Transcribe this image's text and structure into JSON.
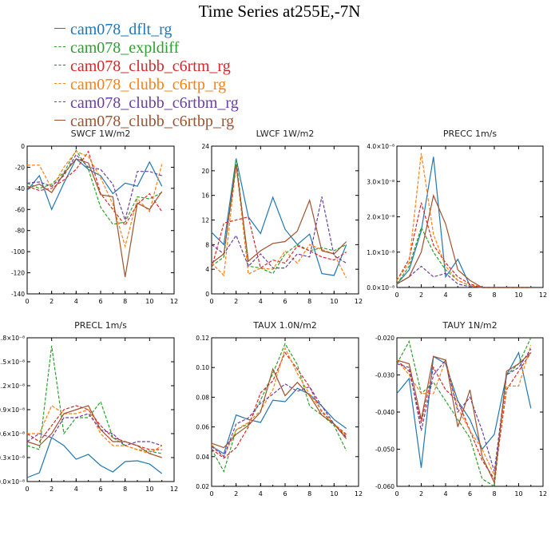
{
  "title": "Time Series at255E,-7N",
  "colors": {
    "cam078_dflt_rg": "#1f77b4",
    "cam078_expldiff": "#2ca02c",
    "cam078_clubb_c6rtm_rg": "#d62728",
    "cam078_clubb_c6rtp_rg": "#ff7f0e",
    "cam078_clubb_c6rtbm_rg": "#6b3fa0",
    "cam078_clubb_c6rtbp_rg": "#a0522d"
  },
  "legend": [
    {
      "name": "cam078_dflt_rg",
      "style": "solid"
    },
    {
      "name": "cam078_expldiff",
      "style": "dashed"
    },
    {
      "name": "cam078_clubb_c6rtm_rg",
      "style": "dashed"
    },
    {
      "name": "cam078_clubb_c6rtp_rg",
      "style": "dashed"
    },
    {
      "name": "cam078_clubb_c6rtbm_rg",
      "style": "dashed"
    },
    {
      "name": "cam078_clubb_c6rtbp_rg",
      "style": "solid"
    }
  ],
  "chart_data": [
    {
      "type": "line",
      "id": "swcf",
      "title": "SWCF   1W/m2",
      "x": [
        0,
        1,
        2,
        3,
        4,
        5,
        6,
        7,
        8,
        9,
        10,
        11
      ],
      "xlim": [
        0,
        12
      ],
      "xticks": [
        0,
        2,
        4,
        6,
        8,
        10,
        12
      ],
      "ylim": [
        -140,
        0
      ],
      "yticks": [
        -140,
        -120,
        -100,
        -80,
        -60,
        -40,
        -20,
        0
      ],
      "ytick_labels": [
        "-140",
        "-120",
        "-100",
        "-80",
        "-60",
        "-40",
        "-20",
        "0"
      ],
      "series": [
        {
          "name": "cam078_dflt_rg",
          "values": [
            -42,
            -28,
            -60,
            -35,
            -12,
            -22,
            -28,
            -45,
            -35,
            -38,
            -15,
            -38
          ]
        },
        {
          "name": "cam078_expldiff",
          "values": [
            -35,
            -40,
            -36,
            -25,
            -4,
            -22,
            -58,
            -74,
            -72,
            -48,
            -50,
            -44
          ]
        },
        {
          "name": "cam078_clubb_c6rtm_rg",
          "values": [
            -38,
            -42,
            -40,
            -32,
            -22,
            -5,
            -45,
            -60,
            -75,
            -55,
            -45,
            -62
          ]
        },
        {
          "name": "cam078_clubb_c6rtp_rg",
          "values": [
            -18,
            -18,
            -40,
            -20,
            -5,
            -10,
            -30,
            -55,
            -95,
            -50,
            -62,
            -17
          ]
        },
        {
          "name": "cam078_clubb_c6rtbm_rg",
          "values": [
            -35,
            -34,
            -38,
            -28,
            -8,
            -20,
            -22,
            -36,
            -70,
            -24,
            -24,
            -28
          ]
        },
        {
          "name": "cam078_clubb_c6rtbp_rg",
          "values": [
            -40,
            -36,
            -44,
            -26,
            -12,
            -16,
            -46,
            -48,
            -124,
            -54,
            -60,
            -43
          ]
        }
      ]
    },
    {
      "type": "line",
      "id": "lwcf",
      "title": "LWCF   1W/m2",
      "x": [
        0,
        1,
        2,
        3,
        4,
        5,
        6,
        7,
        8,
        9,
        10,
        11
      ],
      "xlim": [
        0,
        12
      ],
      "xticks": [
        0,
        2,
        4,
        6,
        8,
        10,
        12
      ],
      "ylim": [
        0,
        24
      ],
      "yticks": [
        0,
        4,
        8,
        12,
        16,
        20,
        24
      ],
      "ytick_labels": [
        "0",
        "4",
        "8",
        "12",
        "16",
        "20",
        "24"
      ],
      "series": [
        {
          "name": "cam078_dflt_rg",
          "values": [
            10,
            8,
            22,
            12.5,
            9.8,
            15.7,
            10.5,
            8,
            9.7,
            3.3,
            3.0,
            8
          ]
        },
        {
          "name": "cam078_expldiff",
          "values": [
            4.5,
            6.0,
            22,
            4.5,
            4.2,
            3.3,
            6.5,
            8,
            7,
            7.5,
            7,
            8
          ]
        },
        {
          "name": "cam078_clubb_c6rtm_rg",
          "values": [
            4.2,
            11.5,
            12,
            12.5,
            4.2,
            5.5,
            5,
            7.8,
            7,
            6,
            5.5,
            6.8
          ]
        },
        {
          "name": "cam078_clubb_c6rtp_rg",
          "values": [
            5,
            3,
            21,
            3.2,
            4.2,
            4,
            7,
            5,
            8,
            7.2,
            6.5,
            2.6
          ]
        },
        {
          "name": "cam078_clubb_c6rtbm_rg",
          "values": [
            8,
            6.5,
            9.5,
            4.5,
            6.5,
            4.2,
            4.2,
            6.5,
            6,
            15.8,
            6.2,
            5
          ]
        },
        {
          "name": "cam078_clubb_c6rtbp_rg",
          "values": [
            5,
            6.5,
            21,
            5.3,
            7,
            8.2,
            8.5,
            10.2,
            15.2,
            7,
            6.5,
            8.5
          ]
        }
      ]
    },
    {
      "type": "line",
      "id": "precc",
      "title": "PRECC   1m/s",
      "x": [
        0,
        1,
        2,
        3,
        4,
        5,
        6,
        7,
        8,
        9,
        10,
        11
      ],
      "xlim": [
        0,
        12
      ],
      "xticks": [
        0,
        2,
        4,
        6,
        8,
        10,
        12
      ],
      "ylim": [
        0,
        4e-08
      ],
      "yticks": [
        0,
        1e-08,
        2e-08,
        3e-08,
        4e-08
      ],
      "ytick_labels": [
        "0.0×10⁻⁸",
        "1.0×10⁻⁸",
        "2.0×10⁻⁸",
        "3.0×10⁻⁸",
        "4.0×10⁻⁸"
      ],
      "series": [
        {
          "name": "cam078_dflt_rg",
          "values": [
            1e-09,
            5e-09,
            1.6e-08,
            3.7e-08,
            3e-09,
            8e-09,
            5e-10,
            0,
            0,
            0,
            0,
            0
          ]
        },
        {
          "name": "cam078_expldiff",
          "values": [
            1e-09,
            6e-09,
            1.7e-08,
            1e-08,
            5e-09,
            2e-09,
            5e-10,
            0,
            0,
            0,
            0,
            0
          ]
        },
        {
          "name": "cam078_clubb_c6rtm_rg",
          "values": [
            2e-09,
            8e-09,
            2.4e-08,
            1.2e-08,
            7e-09,
            3e-09,
            1e-09,
            0,
            0,
            0,
            0,
            0
          ]
        },
        {
          "name": "cam078_clubb_c6rtp_rg",
          "values": [
            2e-09,
            7e-09,
            3.8e-08,
            1.5e-08,
            6e-09,
            2e-09,
            5e-10,
            0,
            0,
            0,
            0,
            0
          ]
        },
        {
          "name": "cam078_clubb_c6rtbm_rg",
          "values": [
            1e-09,
            3e-09,
            6e-09,
            3e-09,
            4e-09,
            1e-09,
            2e-10,
            0,
            0,
            0,
            0,
            0
          ]
        },
        {
          "name": "cam078_clubb_c6rtbp_rg",
          "values": [
            1e-09,
            3e-09,
            1e-08,
            2.6e-08,
            1.8e-08,
            5e-09,
            2e-09,
            0,
            0,
            0,
            0,
            0
          ]
        }
      ]
    },
    {
      "type": "line",
      "id": "precl",
      "title": "PRECL   1m/s",
      "x": [
        0,
        1,
        2,
        3,
        4,
        5,
        6,
        7,
        8,
        9,
        10,
        11
      ],
      "xlim": [
        0,
        12
      ],
      "xticks": [
        0,
        2,
        4,
        6,
        8,
        10,
        12
      ],
      "ylim": [
        0,
        1.8e-08
      ],
      "yticks": [
        0,
        3e-09,
        6e-09,
        9e-09,
        1.2e-08,
        1.5e-08,
        1.8e-08
      ],
      "ytick_labels": [
        "0.0×10⁻⁸",
        "0.3×10⁻⁸",
        "0.6×10⁻⁸",
        "0.9×10⁻⁸",
        "1.2×10⁻⁸",
        "1.5×10⁻⁸",
        "1.8×10⁻⁸"
      ],
      "series": [
        {
          "name": "cam078_dflt_rg",
          "values": [
            5e-10,
            1.1e-09,
            5.5e-09,
            4.5e-09,
            2.8e-09,
            3.4e-09,
            2e-09,
            1.2e-09,
            2.5e-09,
            2.6e-09,
            2.2e-09,
            1e-09
          ]
        },
        {
          "name": "cam078_expldiff",
          "values": [
            4.5e-09,
            4e-09,
            1.7e-08,
            6e-09,
            8e-09,
            8e-09,
            1e-08,
            5.5e-09,
            4.5e-09,
            4e-09,
            3.8e-09,
            3.5e-09
          ]
        },
        {
          "name": "cam078_clubb_c6rtm_rg",
          "values": [
            6e-09,
            5e-09,
            7e-09,
            9e-09,
            9.5e-09,
            9e-09,
            7e-09,
            5.5e-09,
            5e-09,
            4.5e-09,
            4e-09,
            4e-09
          ]
        },
        {
          "name": "cam078_clubb_c6rtp_rg",
          "values": [
            6e-09,
            6e-09,
            9.5e-09,
            8.5e-09,
            8.5e-09,
            9e-09,
            6e-09,
            4.5e-09,
            4.5e-09,
            4e-09,
            3.5e-09,
            4.5e-09
          ]
        },
        {
          "name": "cam078_clubb_c6rtbm_rg",
          "values": [
            5e-09,
            6e-09,
            5.5e-09,
            8e-09,
            8e-09,
            8.5e-09,
            6.5e-09,
            6e-09,
            4.5e-09,
            5e-09,
            5e-09,
            4.5e-09
          ]
        },
        {
          "name": "cam078_clubb_c6rtbp_rg",
          "values": [
            5e-09,
            4.5e-09,
            6e-09,
            8.5e-09,
            9e-09,
            9.5e-09,
            6.5e-09,
            5e-09,
            5e-09,
            4.5e-09,
            3.5e-09,
            3e-09
          ]
        }
      ]
    },
    {
      "type": "line",
      "id": "taux",
      "title": "TAUX   1.0N/m2",
      "x": [
        0,
        1,
        2,
        3,
        4,
        5,
        6,
        7,
        8,
        9,
        10,
        11
      ],
      "xlim": [
        0,
        12
      ],
      "xticks": [
        0,
        2,
        4,
        6,
        8,
        10,
        12
      ],
      "ylim": [
        0.02,
        0.12
      ],
      "yticks": [
        0.02,
        0.04,
        0.06,
        0.08,
        0.1,
        0.12
      ],
      "ytick_labels": [
        "0.02",
        "0.04",
        "0.06",
        "0.08",
        "0.10",
        "0.12"
      ],
      "series": [
        {
          "name": "cam078_dflt_rg",
          "values": [
            0.047,
            0.042,
            0.068,
            0.065,
            0.063,
            0.078,
            0.077,
            0.086,
            0.082,
            0.074,
            0.065,
            0.059
          ]
        },
        {
          "name": "cam078_expldiff",
          "values": [
            0.045,
            0.03,
            0.058,
            0.062,
            0.078,
            0.096,
            0.116,
            0.102,
            0.074,
            0.068,
            0.061,
            0.044
          ]
        },
        {
          "name": "cam078_clubb_c6rtm_rg",
          "values": [
            0.045,
            0.039,
            0.046,
            0.06,
            0.083,
            0.091,
            0.11,
            0.099,
            0.087,
            0.07,
            0.062,
            0.055
          ]
        },
        {
          "name": "cam078_clubb_c6rtp_rg",
          "values": [
            0.048,
            0.04,
            0.058,
            0.063,
            0.071,
            0.085,
            0.113,
            0.096,
            0.082,
            0.071,
            0.062,
            0.054
          ]
        },
        {
          "name": "cam078_clubb_c6rtbm_rg",
          "values": [
            0.047,
            0.04,
            0.062,
            0.066,
            0.076,
            0.082,
            0.089,
            0.084,
            0.087,
            0.074,
            0.062,
            0.053
          ]
        },
        {
          "name": "cam078_clubb_c6rtbp_rg",
          "values": [
            0.049,
            0.046,
            0.055,
            0.061,
            0.07,
            0.099,
            0.081,
            0.09,
            0.081,
            0.068,
            0.062,
            0.052
          ]
        }
      ]
    },
    {
      "type": "line",
      "id": "tauy",
      "title": "TAUY   1N/m2",
      "x": [
        0,
        1,
        2,
        3,
        4,
        5,
        6,
        7,
        8,
        9,
        10,
        11
      ],
      "xlim": [
        0,
        12
      ],
      "xticks": [
        0,
        2,
        4,
        6,
        8,
        10,
        12
      ],
      "ylim": [
        -0.06,
        -0.02
      ],
      "yticks": [
        -0.06,
        -0.05,
        -0.04,
        -0.03,
        -0.02
      ],
      "ytick_labels": [
        "-0.060",
        "-0.050",
        "-0.040",
        "-0.030",
        "-0.020"
      ],
      "series": [
        {
          "name": "cam078_dflt_rg",
          "values": [
            -0.035,
            -0.031,
            -0.055,
            -0.025,
            -0.027,
            -0.037,
            -0.042,
            -0.05,
            -0.046,
            -0.03,
            -0.024,
            -0.039
          ]
        },
        {
          "name": "cam078_expldiff",
          "values": [
            -0.027,
            -0.021,
            -0.035,
            -0.032,
            -0.037,
            -0.042,
            -0.047,
            -0.058,
            -0.06,
            -0.03,
            -0.027,
            -0.02
          ]
        },
        {
          "name": "cam078_clubb_c6rtm_rg",
          "values": [
            -0.026,
            -0.029,
            -0.043,
            -0.028,
            -0.034,
            -0.037,
            -0.045,
            -0.053,
            -0.058,
            -0.034,
            -0.029,
            -0.024
          ]
        },
        {
          "name": "cam078_clubb_c6rtp_rg",
          "values": [
            -0.026,
            -0.03,
            -0.035,
            -0.035,
            -0.026,
            -0.039,
            -0.045,
            -0.05,
            -0.057,
            -0.033,
            -0.033,
            -0.022
          ]
        },
        {
          "name": "cam078_clubb_c6rtbm_rg",
          "values": [
            -0.027,
            -0.028,
            -0.045,
            -0.03,
            -0.026,
            -0.04,
            -0.036,
            -0.045,
            -0.056,
            -0.03,
            -0.028,
            -0.023
          ]
        },
        {
          "name": "cam078_clubb_c6rtbp_rg",
          "values": [
            -0.026,
            -0.027,
            -0.042,
            -0.025,
            -0.026,
            -0.044,
            -0.034,
            -0.052,
            -0.059,
            -0.029,
            -0.027,
            -0.024
          ]
        }
      ]
    }
  ]
}
